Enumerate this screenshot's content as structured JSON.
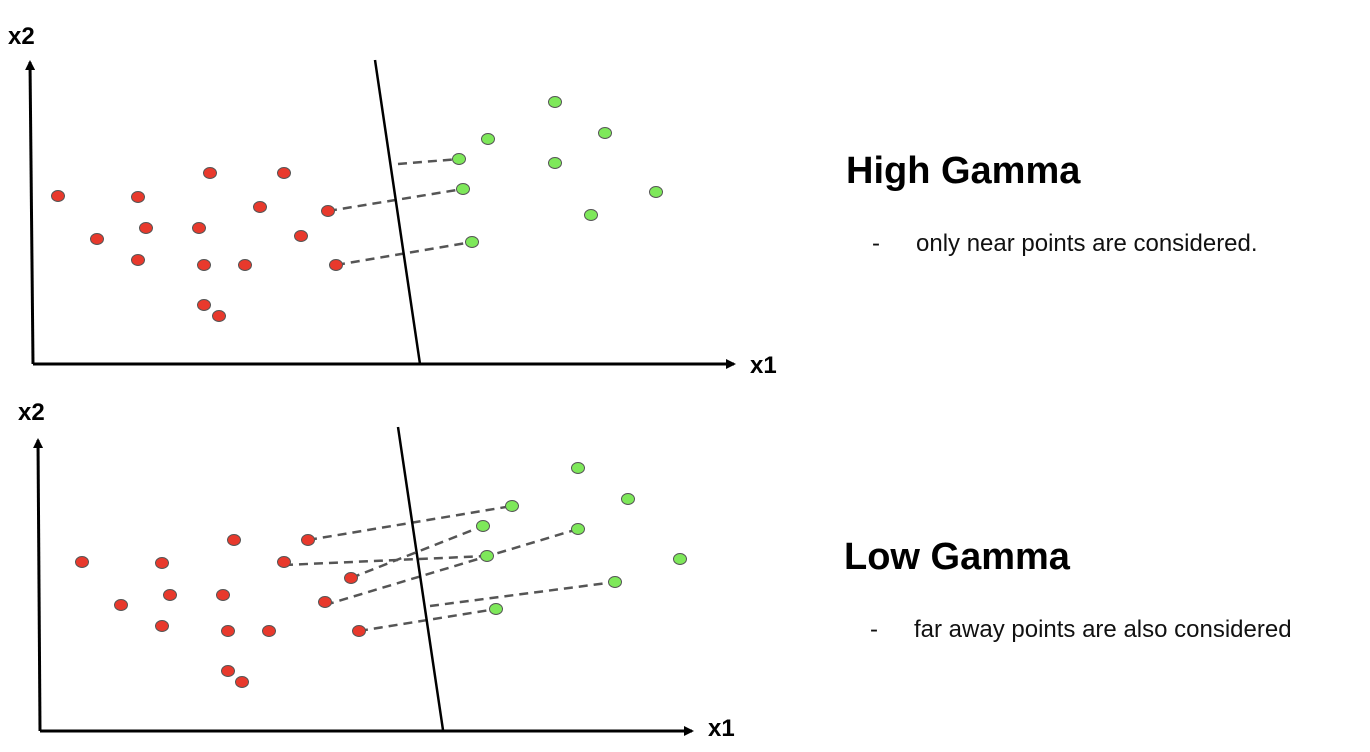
{
  "colors": {
    "class_a": "#e8392c",
    "class_b": "#7ee85a",
    "marker_stroke": "#555555",
    "axis": "#000000",
    "connector": "#555555"
  },
  "panels": [
    {
      "title": "High Gamma",
      "bullet_marker": "-",
      "bullet_text": "only near points are considered.",
      "x_axis_label": "x1",
      "y_axis_label": "x2",
      "red_points": [
        [
          58,
          196
        ],
        [
          138,
          197
        ],
        [
          210,
          173
        ],
        [
          284,
          173
        ],
        [
          146,
          228
        ],
        [
          97,
          239
        ],
        [
          199,
          228
        ],
        [
          260,
          207
        ],
        [
          328,
          211
        ],
        [
          301,
          236
        ],
        [
          138,
          260
        ],
        [
          204,
          265
        ],
        [
          245,
          265
        ],
        [
          336,
          265
        ],
        [
          204,
          305
        ],
        [
          219,
          316
        ]
      ],
      "green_points": [
        [
          555,
          102
        ],
        [
          488,
          139
        ],
        [
          605,
          133
        ],
        [
          459,
          159
        ],
        [
          555,
          163
        ],
        [
          463,
          189
        ],
        [
          656,
          192
        ],
        [
          591,
          215
        ],
        [
          472,
          242
        ]
      ],
      "connectors": [
        [
          [
            398,
            164
          ],
          [
            459,
            159
          ]
        ],
        [
          [
            328,
            211
          ],
          [
            463,
            189
          ]
        ],
        [
          [
            336,
            265
          ],
          [
            472,
            242
          ]
        ]
      ],
      "separator": [
        [
          375,
          60
        ],
        [
          420,
          364
        ]
      ],
      "axes": {
        "origin": [
          33,
          364
        ],
        "x_end": [
          734,
          364
        ],
        "y_end": [
          30,
          62
        ]
      }
    },
    {
      "title": "Low Gamma",
      "bullet_marker": "-",
      "bullet_text": "far away points are also considered",
      "x_axis_label": "x1",
      "y_axis_label": "x2",
      "red_points": [
        [
          82,
          562
        ],
        [
          162,
          563
        ],
        [
          234,
          540
        ],
        [
          308,
          540
        ],
        [
          170,
          595
        ],
        [
          121,
          605
        ],
        [
          223,
          595
        ],
        [
          284,
          562
        ],
        [
          351,
          578
        ],
        [
          325,
          602
        ],
        [
          162,
          626
        ],
        [
          228,
          631
        ],
        [
          269,
          631
        ],
        [
          359,
          631
        ],
        [
          228,
          671
        ],
        [
          242,
          682
        ]
      ],
      "green_points": [
        [
          578,
          468
        ],
        [
          512,
          506
        ],
        [
          628,
          499
        ],
        [
          483,
          526
        ],
        [
          578,
          529
        ],
        [
          487,
          556
        ],
        [
          680,
          559
        ],
        [
          615,
          582
        ],
        [
          496,
          609
        ]
      ],
      "connectors": [
        [
          [
            308,
            540
          ],
          [
            512,
            506
          ]
        ],
        [
          [
            284,
            565
          ],
          [
            487,
            556
          ]
        ],
        [
          [
            351,
            578
          ],
          [
            483,
            526
          ]
        ],
        [
          [
            325,
            605
          ],
          [
            578,
            529
          ]
        ],
        [
          [
            359,
            631
          ],
          [
            496,
            609
          ]
        ],
        [
          [
            430,
            606
          ],
          [
            615,
            582
          ]
        ]
      ],
      "separator": [
        [
          398,
          427
        ],
        [
          443,
          730
        ]
      ],
      "axes": {
        "origin": [
          40,
          731
        ],
        "x_end": [
          692,
          731
        ],
        "y_end": [
          38,
          440
        ]
      }
    }
  ]
}
